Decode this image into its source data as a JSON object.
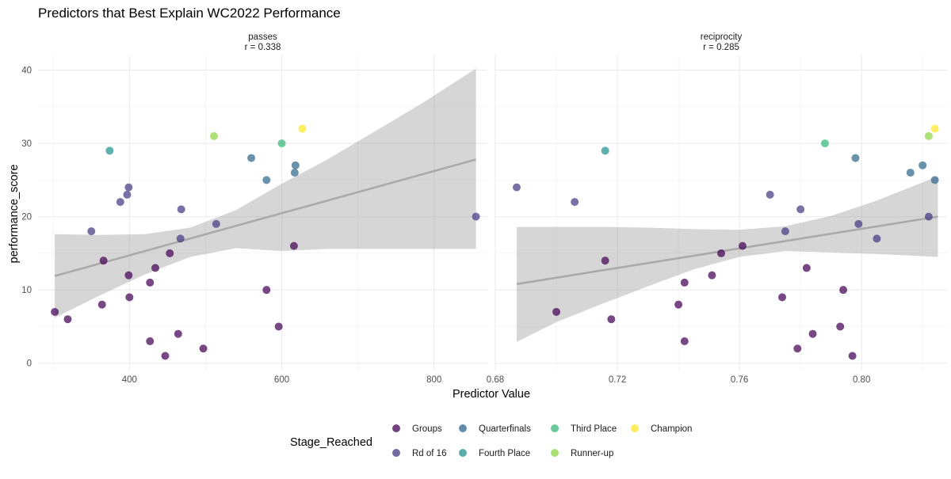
{
  "chart_data": {
    "type": "scatter",
    "title": "Predictors that Best Explain WC2022 Performance",
    "xlabel": "Predictor Value",
    "ylabel": "performance_score",
    "ylim": [
      -1,
      42
    ],
    "yticks": [
      0,
      10,
      20,
      30,
      40
    ],
    "grid": true,
    "legend": {
      "title": "Stage_Reached",
      "placement": "bottom",
      "entries": [
        {
          "key": "Groups",
          "label": "Groups",
          "color": "#440154"
        },
        {
          "key": "Rd of 16",
          "label": "Rd of 16",
          "color": "#443a83"
        },
        {
          "key": "Quarterfinals",
          "label": "Quarterfinals",
          "color": "#31688e"
        },
        {
          "key": "Fourth Place",
          "label": "Fourth Place",
          "color": "#21908d"
        },
        {
          "key": "Third Place",
          "label": "Third Place",
          "color": "#35b779"
        },
        {
          "key": "Runner-up",
          "label": "Runner-up",
          "color": "#8fd744"
        },
        {
          "key": "Champion",
          "label": "Champion",
          "color": "#fde725"
        }
      ]
    },
    "panels": [
      {
        "strip_title": "passes",
        "strip_subtitle": "r = 0.338",
        "xlim": [
          280,
          870
        ],
        "xticks": [
          400,
          600,
          800
        ],
        "xticklabels": [
          "400",
          "600",
          "800"
        ],
        "fit": {
          "line": [
            [
              302,
              11.9
            ],
            [
              855,
              27.8
            ]
          ],
          "band_x": [
            302,
            360,
            420,
            480,
            540,
            600,
            660,
            720,
            780,
            855
          ],
          "band_upper": [
            17.6,
            17.5,
            17.6,
            18.5,
            20.9,
            24.5,
            27.8,
            31.5,
            35.2,
            40.2
          ],
          "band_lower": [
            6.2,
            9.2,
            12.1,
            14.5,
            15.7,
            15.3,
            15.6,
            15.6,
            15.6,
            15.6
          ]
        },
        "points": [
          {
            "x": 302,
            "y": 7,
            "stage": "Groups"
          },
          {
            "x": 319,
            "y": 6,
            "stage": "Groups"
          },
          {
            "x": 364,
            "y": 8,
            "stage": "Groups"
          },
          {
            "x": 400,
            "y": 9,
            "stage": "Groups"
          },
          {
            "x": 427,
            "y": 3,
            "stage": "Groups"
          },
          {
            "x": 427,
            "y": 11,
            "stage": "Groups"
          },
          {
            "x": 447,
            "y": 1,
            "stage": "Groups"
          },
          {
            "x": 464,
            "y": 4,
            "stage": "Groups"
          },
          {
            "x": 497,
            "y": 2,
            "stage": "Groups"
          },
          {
            "x": 580,
            "y": 10,
            "stage": "Groups"
          },
          {
            "x": 596,
            "y": 5,
            "stage": "Groups"
          },
          {
            "x": 366,
            "y": 14,
            "stage": "Groups"
          },
          {
            "x": 399,
            "y": 12,
            "stage": "Groups"
          },
          {
            "x": 434,
            "y": 13,
            "stage": "Groups"
          },
          {
            "x": 453,
            "y": 15,
            "stage": "Groups"
          },
          {
            "x": 616,
            "y": 16,
            "stage": "Groups"
          },
          {
            "x": 350,
            "y": 18,
            "stage": "Rd of 16"
          },
          {
            "x": 388,
            "y": 22,
            "stage": "Rd of 16"
          },
          {
            "x": 397,
            "y": 23,
            "stage": "Rd of 16"
          },
          {
            "x": 399,
            "y": 24,
            "stage": "Rd of 16"
          },
          {
            "x": 468,
            "y": 21,
            "stage": "Rd of 16"
          },
          {
            "x": 467,
            "y": 17,
            "stage": "Rd of 16"
          },
          {
            "x": 514,
            "y": 19,
            "stage": "Rd of 16"
          },
          {
            "x": 855,
            "y": 20,
            "stage": "Rd of 16"
          },
          {
            "x": 560,
            "y": 28,
            "stage": "Quarterfinals"
          },
          {
            "x": 580,
            "y": 25,
            "stage": "Quarterfinals"
          },
          {
            "x": 618,
            "y": 27,
            "stage": "Quarterfinals"
          },
          {
            "x": 617,
            "y": 26,
            "stage": "Quarterfinals"
          },
          {
            "x": 374,
            "y": 29,
            "stage": "Fourth Place"
          },
          {
            "x": 600,
            "y": 30,
            "stage": "Third Place"
          },
          {
            "x": 511,
            "y": 31,
            "stage": "Runner-up"
          },
          {
            "x": 627,
            "y": 32,
            "stage": "Champion"
          }
        ]
      },
      {
        "strip_title": "reciprocity",
        "strip_subtitle": "r = 0.285",
        "xlim": [
          0.68,
          0.828
        ],
        "xticks": [
          0.68,
          0.72,
          0.76,
          0.8
        ],
        "xticklabels": [
          "0.68",
          "0.72",
          "0.76",
          "0.80"
        ],
        "fit": {
          "line": [
            [
              0.687,
              10.8
            ],
            [
              0.825,
              20.0
            ]
          ],
          "band_x": [
            0.687,
            0.7,
            0.715,
            0.73,
            0.745,
            0.76,
            0.775,
            0.79,
            0.805,
            0.825
          ],
          "band_upper": [
            18.6,
            18.6,
            18.6,
            18.5,
            18.3,
            18.2,
            18.7,
            20.1,
            22.2,
            25.5
          ],
          "band_lower": [
            2.9,
            5.6,
            8.1,
            10.5,
            12.8,
            14.5,
            15.3,
            15.1,
            14.9,
            14.5
          ]
        },
        "points": [
          {
            "x": 0.7,
            "y": 7,
            "stage": "Groups"
          },
          {
            "x": 0.718,
            "y": 6,
            "stage": "Groups"
          },
          {
            "x": 0.74,
            "y": 8,
            "stage": "Groups"
          },
          {
            "x": 0.742,
            "y": 3,
            "stage": "Groups"
          },
          {
            "x": 0.742,
            "y": 11,
            "stage": "Groups"
          },
          {
            "x": 0.716,
            "y": 14,
            "stage": "Groups"
          },
          {
            "x": 0.751,
            "y": 12,
            "stage": "Groups"
          },
          {
            "x": 0.754,
            "y": 15,
            "stage": "Groups"
          },
          {
            "x": 0.761,
            "y": 16,
            "stage": "Groups"
          },
          {
            "x": 0.774,
            "y": 9,
            "stage": "Groups"
          },
          {
            "x": 0.779,
            "y": 2,
            "stage": "Groups"
          },
          {
            "x": 0.782,
            "y": 13,
            "stage": "Groups"
          },
          {
            "x": 0.784,
            "y": 4,
            "stage": "Groups"
          },
          {
            "x": 0.793,
            "y": 5,
            "stage": "Groups"
          },
          {
            "x": 0.794,
            "y": 10,
            "stage": "Groups"
          },
          {
            "x": 0.797,
            "y": 1,
            "stage": "Groups"
          },
          {
            "x": 0.687,
            "y": 24,
            "stage": "Rd of 16"
          },
          {
            "x": 0.706,
            "y": 22,
            "stage": "Rd of 16"
          },
          {
            "x": 0.77,
            "y": 23,
            "stage": "Rd of 16"
          },
          {
            "x": 0.775,
            "y": 18,
            "stage": "Rd of 16"
          },
          {
            "x": 0.78,
            "y": 21,
            "stage": "Rd of 16"
          },
          {
            "x": 0.799,
            "y": 19,
            "stage": "Rd of 16"
          },
          {
            "x": 0.805,
            "y": 17,
            "stage": "Rd of 16"
          },
          {
            "x": 0.822,
            "y": 20,
            "stage": "Rd of 16"
          },
          {
            "x": 0.798,
            "y": 28,
            "stage": "Quarterfinals"
          },
          {
            "x": 0.816,
            "y": 26,
            "stage": "Quarterfinals"
          },
          {
            "x": 0.82,
            "y": 27,
            "stage": "Quarterfinals"
          },
          {
            "x": 0.824,
            "y": 25,
            "stage": "Quarterfinals"
          },
          {
            "x": 0.716,
            "y": 29,
            "stage": "Fourth Place"
          },
          {
            "x": 0.788,
            "y": 30,
            "stage": "Third Place"
          },
          {
            "x": 0.822,
            "y": 31,
            "stage": "Runner-up"
          },
          {
            "x": 0.824,
            "y": 32,
            "stage": "Champion"
          }
        ]
      }
    ]
  }
}
